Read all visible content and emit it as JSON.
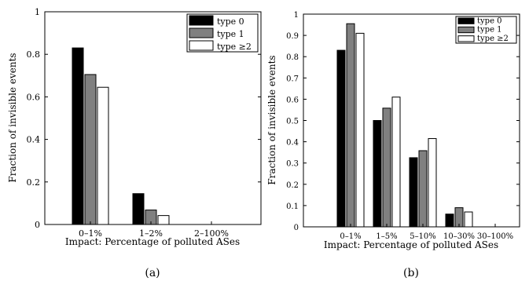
{
  "colors": {
    "type0": "#000000",
    "type1": "#808080",
    "type2": "#ffffff"
  },
  "chart_data": [
    {
      "type": "bar",
      "panel_label": "(a)",
      "xlabel": "Impact: Percentage of polluted ASes",
      "ylabel": "Fraction of invisible events",
      "categories": [
        "0–1%",
        "1–2%",
        "2–100%"
      ],
      "ylim": [
        0,
        1
      ],
      "yticks": [
        "0",
        "0.2",
        "0.4",
        "0.6",
        "0.8",
        "1"
      ],
      "legend_position": "top-right",
      "series": [
        {
          "name": "type 0",
          "values": [
            0.83,
            0.145,
            0
          ]
        },
        {
          "name": "type 1",
          "values": [
            0.705,
            0.068,
            0
          ]
        },
        {
          "name": "type ≥2",
          "values": [
            0.645,
            0.042,
            0
          ]
        }
      ]
    },
    {
      "type": "bar",
      "panel_label": "(b)",
      "xlabel": "Impact: Percentage of polluted ASes",
      "ylabel": "Fraction of invisible events",
      "categories": [
        "0–1%",
        "1–5%",
        "5–10%",
        "10–30%",
        "30–100%"
      ],
      "ylim": [
        0,
        1
      ],
      "yticks": [
        "0",
        "0.1",
        "0.2",
        "0.3",
        "0.4",
        "0.5",
        "0.6",
        "0.7",
        "0.8",
        "0.9",
        "1"
      ],
      "legend_position": "top-right",
      "series": [
        {
          "name": "type 0",
          "values": [
            0.83,
            0.5,
            0.325,
            0.06,
            0
          ]
        },
        {
          "name": "type 1",
          "values": [
            0.955,
            0.558,
            0.358,
            0.09,
            0
          ]
        },
        {
          "name": "type ≥2",
          "values": [
            0.91,
            0.61,
            0.415,
            0.07,
            0
          ]
        }
      ]
    }
  ]
}
